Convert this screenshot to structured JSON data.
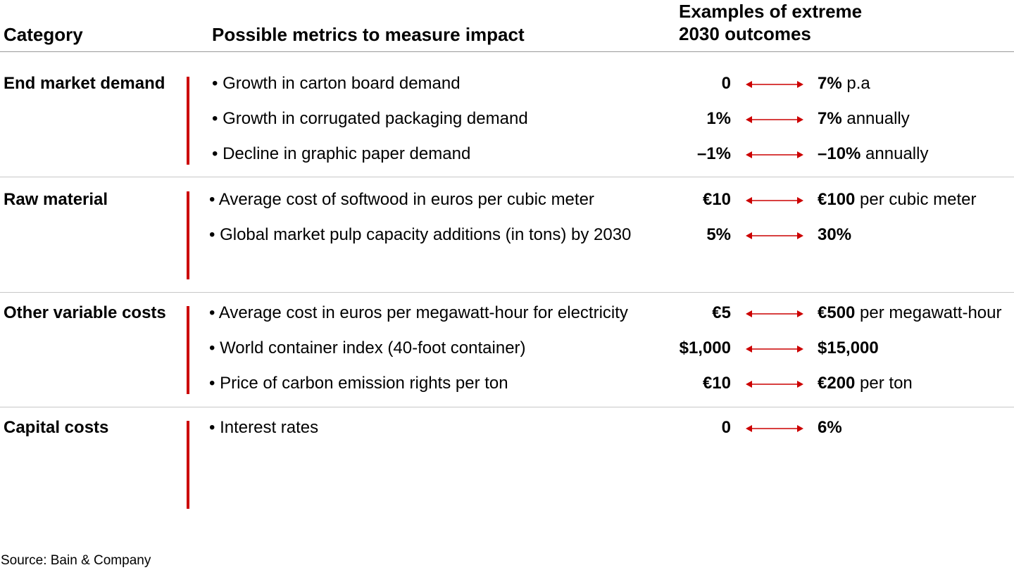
{
  "header": {
    "category": "Category",
    "metrics": "Possible metrics to measure impact",
    "outcomes_line1": "Examples of extreme",
    "outcomes_line2": "2030 outcomes"
  },
  "arrow_color": "#cc0000",
  "accent_bar_color": "#cc0000",
  "groups": [
    {
      "category": "End market demand",
      "rows": [
        {
          "metric": "• Growth in carton board demand",
          "low": "0",
          "high": "7%",
          "high_suffix": " p.a"
        },
        {
          "metric": "• Growth in corrugated packaging demand",
          "low": "1%",
          "high": "7%",
          "high_suffix": " annually"
        },
        {
          "metric": "• Decline in graphic paper demand",
          "low": "–1%",
          "high": "–10%",
          "high_suffix": " annually"
        }
      ]
    },
    {
      "category": "Raw material",
      "rows": [
        {
          "metric": "• Average cost of softwood in euros per cubic meter",
          "low": "€10",
          "high": "€100",
          "high_suffix": " per cubic meter"
        },
        {
          "metric": "• Global market pulp capacity additions (in tons) by 2030",
          "low": "5%",
          "high": "30%",
          "high_suffix": ""
        }
      ]
    },
    {
      "category": "Other variable costs",
      "rows": [
        {
          "metric": "• Average cost in euros per megawatt-hour for electricity",
          "low": "€5",
          "high": "€500",
          "high_suffix": " per megawatt-hour"
        },
        {
          "metric": "• World container index (40-foot container)",
          "low": "$1,000",
          "high": "$15,000",
          "high_suffix": ""
        },
        {
          "metric": "• Price of carbon emission rights per ton",
          "low": "€10",
          "high": "€200",
          "high_suffix": " per ton"
        }
      ]
    },
    {
      "category": "Capital costs",
      "rows": [
        {
          "metric": "• Interest rates",
          "low": "0",
          "high": "6%",
          "high_suffix": ""
        }
      ]
    }
  ],
  "source": "Source: Bain & Company"
}
